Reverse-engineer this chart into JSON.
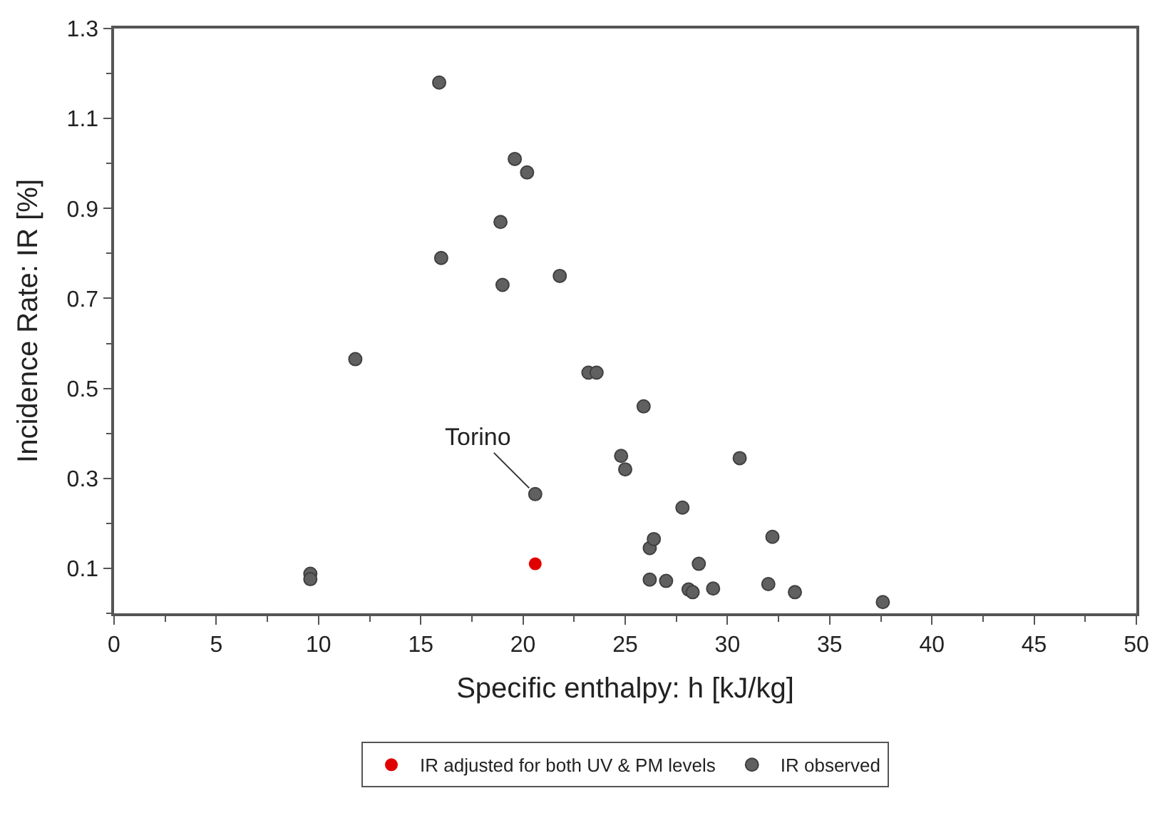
{
  "chart_data": {
    "type": "scatter",
    "xlabel": "Specific enthalpy: h [kJ/kg]",
    "ylabel": "Incidence Rate: IR [%]",
    "xlim": [
      0,
      50
    ],
    "xticks": [
      0,
      5,
      10,
      15,
      20,
      25,
      30,
      35,
      40,
      45,
      50
    ],
    "ylim": [
      0,
      1.3
    ],
    "yticks": [
      0.1,
      0.3,
      0.5,
      0.7,
      0.9,
      1.1,
      1.3
    ],
    "grid": false,
    "legend": "bottom",
    "marker": "circle",
    "annotations": [
      {
        "text": "Torino",
        "x": 20.6,
        "y": 0.265
      }
    ],
    "series": [
      {
        "name": "IR adjusted for both UV & PM levels",
        "color": "#e00000",
        "x": [
          20.6
        ],
        "values": [
          0.11
        ]
      },
      {
        "name": "IR observed",
        "color": "#606060",
        "x": [
          9.6,
          9.6,
          11.8,
          15.9,
          16.0,
          18.9,
          19.0,
          19.6,
          20.2,
          20.6,
          21.8,
          23.2,
          23.6,
          24.8,
          25.0,
          25.9,
          26.2,
          26.4,
          26.2,
          27.0,
          27.8,
          28.6,
          28.1,
          28.3,
          29.3,
          30.6,
          32.0,
          32.2,
          33.3,
          37.6
        ],
        "values": [
          0.088,
          0.076,
          0.565,
          1.18,
          0.79,
          0.87,
          0.73,
          1.01,
          0.98,
          0.265,
          0.75,
          0.535,
          0.535,
          0.35,
          0.32,
          0.46,
          0.145,
          0.165,
          0.075,
          0.072,
          0.235,
          0.11,
          0.053,
          0.047,
          0.055,
          0.345,
          0.065,
          0.17,
          0.047,
          0.025
        ]
      }
    ]
  }
}
